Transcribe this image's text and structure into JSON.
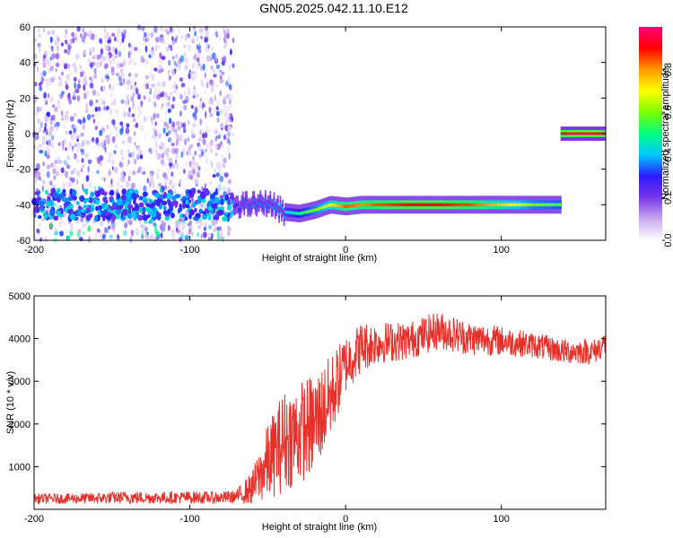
{
  "title": "GN05.2025.042.11.10.E12",
  "colorbar": {
    "label": "Normalized spectral amplitude",
    "ticks": [
      "0.0",
      "0.2",
      "0.4",
      "0.6",
      "0.8"
    ],
    "tick_values": [
      0.0,
      0.2,
      0.4,
      0.6,
      0.8
    ],
    "stops": [
      "#ffffff",
      "#c9a9ef",
      "#7a36e8",
      "#2c1aff",
      "#00c8ff",
      "#00ff80",
      "#7cff00",
      "#ffff00",
      "#ff9a00",
      "#ff0000",
      "#ff007a"
    ]
  },
  "chart_data": [
    {
      "type": "heatmap",
      "xlabel": "Height of straight line (km)",
      "ylabel": "Frequency (Hz)",
      "xlim": [
        -200,
        167
      ],
      "ylim": [
        -60,
        60
      ],
      "xticks": [
        -200,
        -100,
        0,
        100
      ],
      "yticks": [
        -60,
        -40,
        -20,
        0,
        20,
        40,
        60
      ],
      "xtick_labels": [
        "-200",
        "-100",
        "0",
        "100"
      ],
      "ytick_labels": [
        "-60",
        "-40",
        "-20",
        "0",
        "20",
        "40",
        "60"
      ],
      "noise_region_x": [
        -200,
        -72
      ],
      "trace": {
        "x": [
          -72,
          -60,
          -50,
          -40,
          -30,
          -20,
          -10,
          0,
          10,
          20,
          40,
          60,
          80,
          100,
          120,
          138
        ],
        "freq": [
          -40,
          -40,
          -39,
          -44,
          -45,
          -43,
          -40,
          -41,
          -40,
          -40,
          -40,
          -40,
          -40,
          -40,
          -40,
          -40
        ]
      },
      "trace_amplitude": [
        0.3,
        0.35,
        0.35,
        0.4,
        0.5,
        0.6,
        0.7,
        0.85,
        0.8,
        0.85,
        0.9,
        0.9,
        0.85,
        0.75,
        0.6,
        0.55
      ],
      "dc_band": {
        "x": [
          138,
          167
        ],
        "freq": 0,
        "amplitude": 0.95
      }
    },
    {
      "type": "line",
      "xlabel": "Height of straight line (km)",
      "ylabel": "SNR (10 * v/v)",
      "xlim": [
        -200,
        167
      ],
      "ylim": [
        0,
        5000
      ],
      "xticks": [
        -200,
        -100,
        0,
        100
      ],
      "yticks": [
        1000,
        2000,
        3000,
        4000,
        5000
      ],
      "xtick_labels": [
        "-200",
        "-100",
        "0",
        "100"
      ],
      "ytick_labels": [
        "1000",
        "2000",
        "3000",
        "4000",
        "5000"
      ],
      "color": "#e8302a",
      "series": [
        {
          "x": [
            -200,
            -180,
            -160,
            -140,
            -120,
            -100,
            -80,
            -70,
            -60,
            -50,
            -40,
            -30,
            -20,
            -10,
            0,
            10,
            20,
            40,
            60,
            80,
            100,
            120,
            140,
            160,
            167
          ],
          "values": [
            250,
            250,
            260,
            280,
            270,
            280,
            270,
            300,
            500,
            1100,
            1600,
            1800,
            2000,
            2600,
            3400,
            3800,
            3900,
            3950,
            4200,
            4000,
            3950,
            3850,
            3700,
            3700,
            3900
          ],
          "spread": [
            120,
            120,
            130,
            150,
            140,
            150,
            140,
            160,
            400,
            900,
            1200,
            1200,
            1200,
            1000,
            700,
            600,
            500,
            450,
            450,
            400,
            350,
            300,
            300,
            300,
            300
          ]
        }
      ]
    }
  ]
}
